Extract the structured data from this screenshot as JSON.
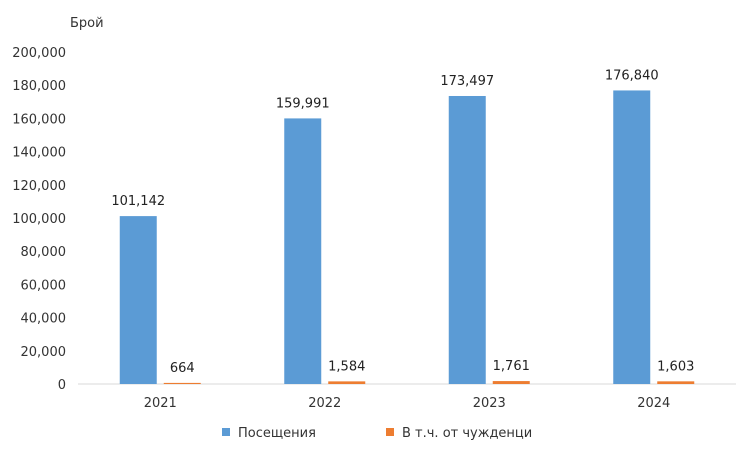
{
  "chart_data": {
    "type": "bar",
    "ylabel": "Брой",
    "categories": [
      "2021",
      "2022",
      "2023",
      "2024"
    ],
    "ylim": [
      0,
      200000
    ],
    "yticks": [
      "0",
      "20,000",
      "40,000",
      "60,000",
      "80,000",
      "100,000",
      "120,000",
      "140,000",
      "160,000",
      "180,000",
      "200,000"
    ],
    "grid": false,
    "legend_position": "bottom",
    "series": [
      {
        "name": "Посещения",
        "color": "#5B9BD5",
        "values": [
          101142,
          159991,
          173497,
          176840
        ],
        "labels": [
          "101,142",
          "159,991",
          "173,497",
          "176,840"
        ]
      },
      {
        "name": "В т.ч. от чужденци",
        "color": "#ED7D31",
        "values": [
          664,
          1584,
          1761,
          1603
        ],
        "labels": [
          "664",
          "1,584",
          "1,761",
          "1,603"
        ]
      }
    ]
  }
}
